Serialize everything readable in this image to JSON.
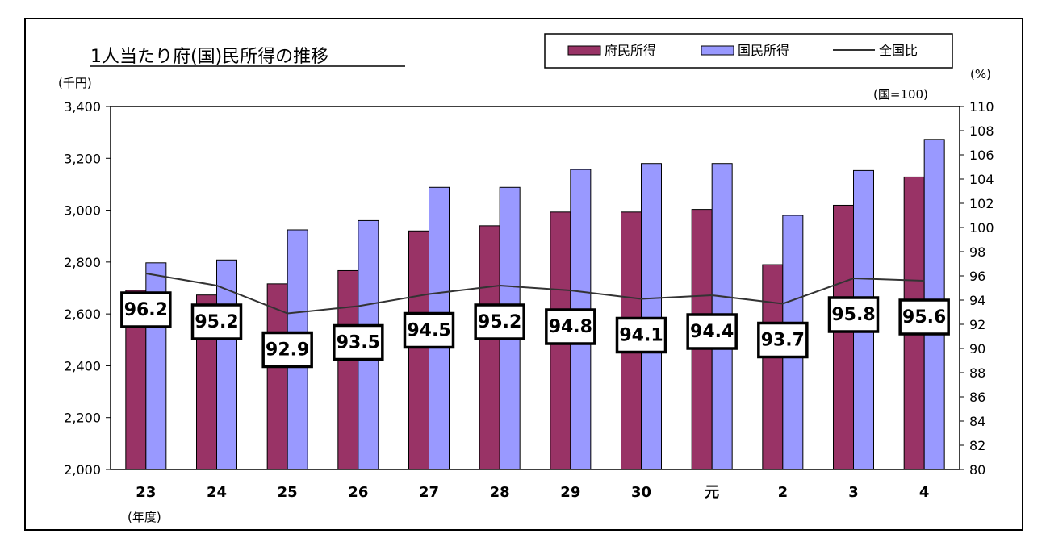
{
  "chart_data": {
    "type": "bar",
    "title": "1人当たり府(国)民所得の推移",
    "categories": [
      "23",
      "24",
      "25",
      "26",
      "27",
      "28",
      "29",
      "30",
      "元",
      "2",
      "3",
      "4"
    ],
    "xlabel": "(年度)",
    "ylabel": "(千円)",
    "ylim": [
      2000,
      3400
    ],
    "yticks": [
      "2,000",
      "2,200",
      "2,400",
      "2,600",
      "2,800",
      "3,000",
      "3,200",
      "3,400"
    ],
    "y2label": "(%)",
    "y2note": "(国=100)",
    "y2lim": [
      80,
      110
    ],
    "y2ticks": [
      "80",
      "82",
      "84",
      "86",
      "88",
      "90",
      "92",
      "94",
      "96",
      "98",
      "100",
      "102",
      "104",
      "106",
      "108",
      "110"
    ],
    "grid": false,
    "legend_position": "top-right",
    "series": [
      {
        "name": "府民所得",
        "kind": "bar",
        "axis": "left",
        "color": "#993366",
        "values": [
          2691,
          2673,
          2716,
          2767,
          2920,
          2940,
          2993,
          2993,
          3003,
          2790,
          3019,
          3128
        ]
      },
      {
        "name": "国民所得",
        "kind": "bar",
        "axis": "left",
        "color": "#9999ff",
        "values": [
          2797,
          2808,
          2924,
          2960,
          3088,
          3088,
          3157,
          3180,
          3180,
          2980,
          3153,
          3273
        ]
      },
      {
        "name": "全国比",
        "kind": "line",
        "axis": "right",
        "color": "#333333",
        "values": [
          96.2,
          95.2,
          92.9,
          93.5,
          94.5,
          95.2,
          94.8,
          94.1,
          94.4,
          93.7,
          95.8,
          95.6
        ],
        "labels": [
          "96.2",
          "95.2",
          "92.9",
          "93.5",
          "94.5",
          "95.2",
          "94.8",
          "94.1",
          "94.4",
          "93.7",
          "95.8",
          "95.6"
        ]
      }
    ]
  }
}
